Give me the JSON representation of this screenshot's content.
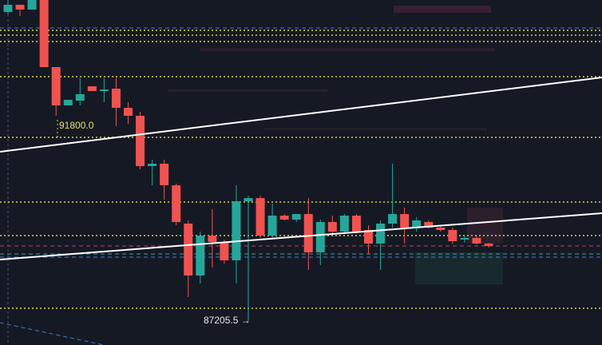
{
  "chart_data": {
    "type": "candlestick",
    "up_color": "#26a69a",
    "down_color": "#ef5350",
    "ylim": [
      86600,
      95240
    ],
    "open": [
      94940,
      95120,
      95000,
      95240,
      93560,
      92600,
      92720,
      93080,
      92960,
      93020,
      92540,
      92340,
      91080,
      91140,
      90600,
      89640,
      88340,
      89340,
      89180,
      88720,
      90200,
      90280,
      89340,
      89840,
      89740,
      89880,
      88920,
      89680,
      89440,
      89840,
      89480,
      89140,
      89640,
      89880,
      89540,
      89680,
      89540,
      89480,
      89240,
      89280,
      89140
    ],
    "high": [
      95240,
      95120,
      95240,
      95240,
      93560,
      92740,
      93280,
      93080,
      93280,
      93280,
      92680,
      92440,
      91240,
      91240,
      90640,
      89720,
      89440,
      90000,
      89240,
      90600,
      90340,
      90340,
      90140,
      89880,
      89880,
      90280,
      89740,
      89840,
      89880,
      89880,
      89600,
      89720,
      91140,
      90040,
      89800,
      89720,
      89560,
      89540,
      89320,
      89320,
      89160
    ],
    "low": [
      94880,
      94840,
      95000,
      93560,
      92340,
      92600,
      92600,
      92960,
      92680,
      92080,
      92140,
      91000,
      90600,
      90240,
      89600,
      87800,
      88140,
      88540,
      88640,
      88140,
      87205.5,
      89280,
      89280,
      89720,
      89680,
      88480,
      88600,
      89400,
      89380,
      89400,
      88880,
      88480,
      89540,
      89140,
      89440,
      89520,
      89440,
      89140,
      89160,
      89120,
      89040
    ],
    "close": [
      95120,
      95000,
      95240,
      93560,
      92600,
      92740,
      92880,
      92960,
      93000,
      92540,
      92340,
      91080,
      91140,
      90600,
      89680,
      88340,
      89340,
      89180,
      88720,
      90200,
      90280,
      89340,
      89840,
      89740,
      89880,
      88920,
      89680,
      89440,
      89840,
      89440,
      89140,
      89640,
      89880,
      89540,
      89720,
      89540,
      89480,
      89200,
      89280,
      89140,
      89080
    ],
    "levels": [
      {
        "value": 94540,
        "color": "#3d7fd6",
        "style": "dashed"
      },
      {
        "value": 94480,
        "color": "#d8d24a",
        "style": "dotted"
      },
      {
        "value": 94360,
        "color": "#d8d24a",
        "style": "dotted"
      },
      {
        "value": 94200,
        "color": "#d8d24a",
        "style": "dotted"
      },
      {
        "value": 93320,
        "color": "#d8d24a",
        "style": "dotted"
      },
      {
        "value": 91800,
        "color": "#d8d24a",
        "style": "dotted",
        "label": "91800.0"
      },
      {
        "value": 90180,
        "color": "#d8d24a",
        "style": "dotted"
      },
      {
        "value": 89340,
        "color": "#d8d24a",
        "style": "dotted"
      },
      {
        "value": 89080,
        "color": "#c0455a",
        "style": "dashed"
      },
      {
        "value": 88880,
        "color": "#3aa39a",
        "style": "dashed"
      },
      {
        "value": 88800,
        "color": "#3d7fd6",
        "style": "dashed"
      },
      {
        "value": 87520,
        "color": "#d8d24a",
        "style": "dotted"
      }
    ],
    "annotations": [
      {
        "value": 87205.5,
        "label": "87205.5 →"
      }
    ]
  }
}
